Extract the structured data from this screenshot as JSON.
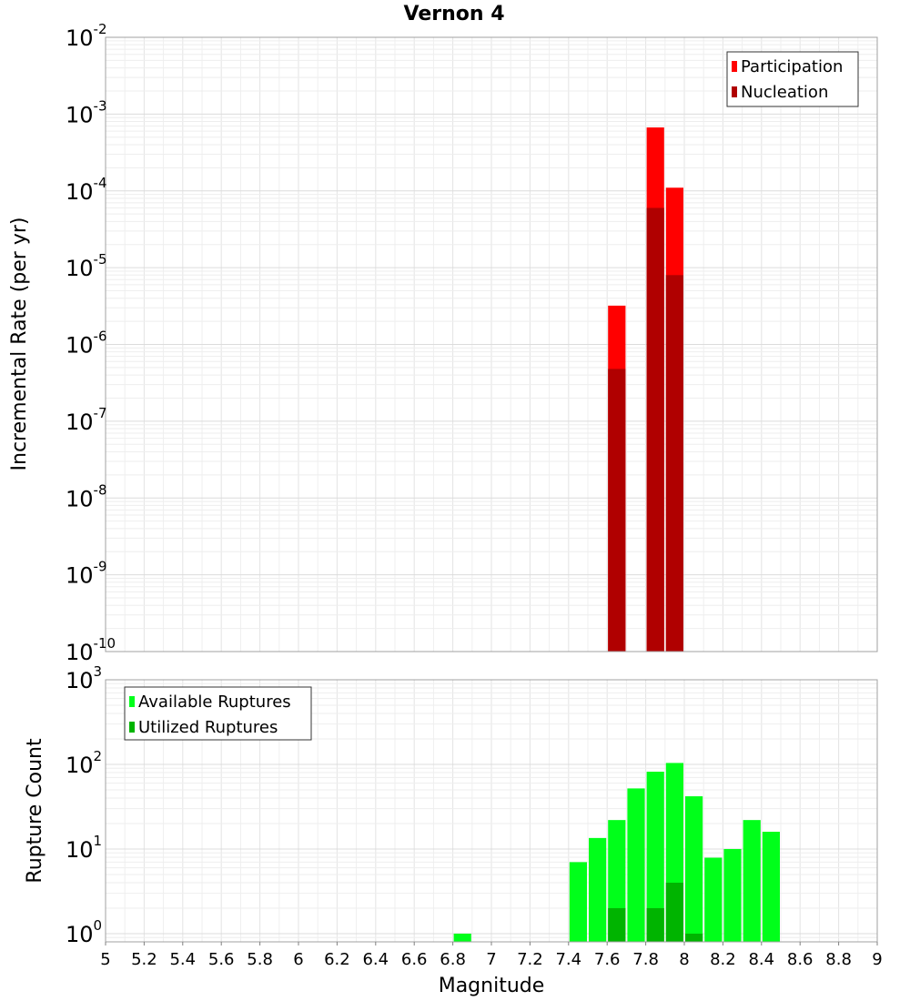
{
  "chart_data": {
    "type": "bar",
    "title": "Vernon 4",
    "xlabel": "Magnitude",
    "xlim": [
      5,
      9
    ],
    "x_ticks": [
      "5",
      "5.2",
      "5.4",
      "5.6",
      "5.8",
      "6",
      "6.2",
      "6.4",
      "6.6",
      "6.8",
      "7",
      "7.2",
      "7.4",
      "7.6",
      "7.8",
      "8",
      "8.2",
      "8.4",
      "8.6",
      "8.8",
      "9"
    ],
    "bin_width": 0.1,
    "panels": [
      {
        "id": "rates",
        "ylabel": "Incremental Rate (per yr)",
        "yscale": "log",
        "ylim": [
          1e-10,
          0.01
        ],
        "y_ticks": [
          {
            "base": "10",
            "exp": "-10"
          },
          {
            "base": "10",
            "exp": "-9"
          },
          {
            "base": "10",
            "exp": "-8"
          },
          {
            "base": "10",
            "exp": "-7"
          },
          {
            "base": "10",
            "exp": "-6"
          },
          {
            "base": "10",
            "exp": "-5"
          },
          {
            "base": "10",
            "exp": "-4"
          },
          {
            "base": "10",
            "exp": "-3"
          },
          {
            "base": "10",
            "exp": "-2"
          }
        ],
        "legend_position": "top-right",
        "series": [
          {
            "name": "Participation",
            "color": "#ff0000",
            "points": [
              {
                "x": 7.65,
                "y": 3.2e-06
              },
              {
                "x": 7.85,
                "y": 0.00067
              },
              {
                "x": 7.95,
                "y": 0.00011
              }
            ]
          },
          {
            "name": "Nucleation",
            "color": "#b00000",
            "points": [
              {
                "x": 7.65,
                "y": 4.8e-07
              },
              {
                "x": 7.85,
                "y": 6e-05
              },
              {
                "x": 7.95,
                "y": 8e-06
              }
            ]
          }
        ]
      },
      {
        "id": "counts",
        "ylabel": "Rupture Count",
        "yscale": "log",
        "ylim": [
          0.8,
          1000
        ],
        "y_ticks": [
          {
            "base": "10",
            "exp": "0",
            "value": 1
          },
          {
            "base": "10",
            "exp": "1",
            "value": 10
          },
          {
            "base": "10",
            "exp": "2",
            "value": 100
          },
          {
            "base": "10",
            "exp": "3",
            "value": 1000
          }
        ],
        "legend_position": "top-left",
        "series": [
          {
            "name": "Available Ruptures",
            "color": "#00ff1a",
            "points": [
              {
                "x": 6.85,
                "y": 1
              },
              {
                "x": 7.45,
                "y": 7
              },
              {
                "x": 7.55,
                "y": 13.5
              },
              {
                "x": 7.65,
                "y": 22
              },
              {
                "x": 7.75,
                "y": 52
              },
              {
                "x": 7.85,
                "y": 82
              },
              {
                "x": 7.95,
                "y": 104
              },
              {
                "x": 8.05,
                "y": 42
              },
              {
                "x": 8.15,
                "y": 7.9
              },
              {
                "x": 8.25,
                "y": 10
              },
              {
                "x": 8.35,
                "y": 22
              },
              {
                "x": 8.45,
                "y": 16
              }
            ]
          },
          {
            "name": "Utilized Ruptures",
            "color": "#00b400",
            "points": [
              {
                "x": 7.65,
                "y": 2
              },
              {
                "x": 7.85,
                "y": 2
              },
              {
                "x": 7.95,
                "y": 4
              },
              {
                "x": 8.05,
                "y": 1
              }
            ]
          }
        ]
      }
    ]
  }
}
